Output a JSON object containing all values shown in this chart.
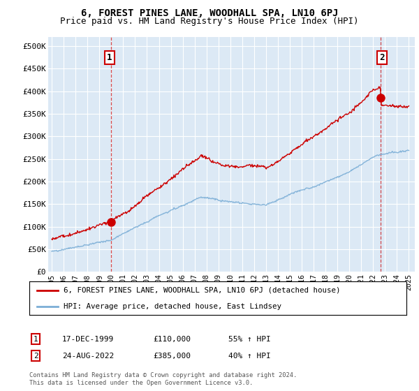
{
  "title": "6, FOREST PINES LANE, WOODHALL SPA, LN10 6PJ",
  "subtitle": "Price paid vs. HM Land Registry's House Price Index (HPI)",
  "ylim": [
    0,
    520000
  ],
  "yticks": [
    0,
    50000,
    100000,
    150000,
    200000,
    250000,
    300000,
    350000,
    400000,
    450000,
    500000
  ],
  "ytick_labels": [
    "£0",
    "£50K",
    "£100K",
    "£150K",
    "£200K",
    "£250K",
    "£300K",
    "£350K",
    "£400K",
    "£450K",
    "£500K"
  ],
  "background_color": "#ffffff",
  "plot_bg_color": "#dce9f5",
  "grid_color": "#ffffff",
  "red_line_color": "#cc0000",
  "blue_line_color": "#7baed6",
  "marker1_x": 1999.96,
  "marker1_y": 110000,
  "marker2_x": 2022.65,
  "marker2_y": 385000,
  "legend_label_red": "6, FOREST PINES LANE, WOODHALL SPA, LN10 6PJ (detached house)",
  "legend_label_blue": "HPI: Average price, detached house, East Lindsey",
  "table_row1": [
    "1",
    "17-DEC-1999",
    "£110,000",
    "55% ↑ HPI"
  ],
  "table_row2": [
    "2",
    "24-AUG-2022",
    "£385,000",
    "40% ↑ HPI"
  ],
  "footer": "Contains HM Land Registry data © Crown copyright and database right 2024.\nThis data is licensed under the Open Government Licence v3.0.",
  "title_fontsize": 10,
  "subtitle_fontsize": 9,
  "tick_fontsize": 8,
  "xlim_left": 1994.7,
  "xlim_right": 2025.5
}
